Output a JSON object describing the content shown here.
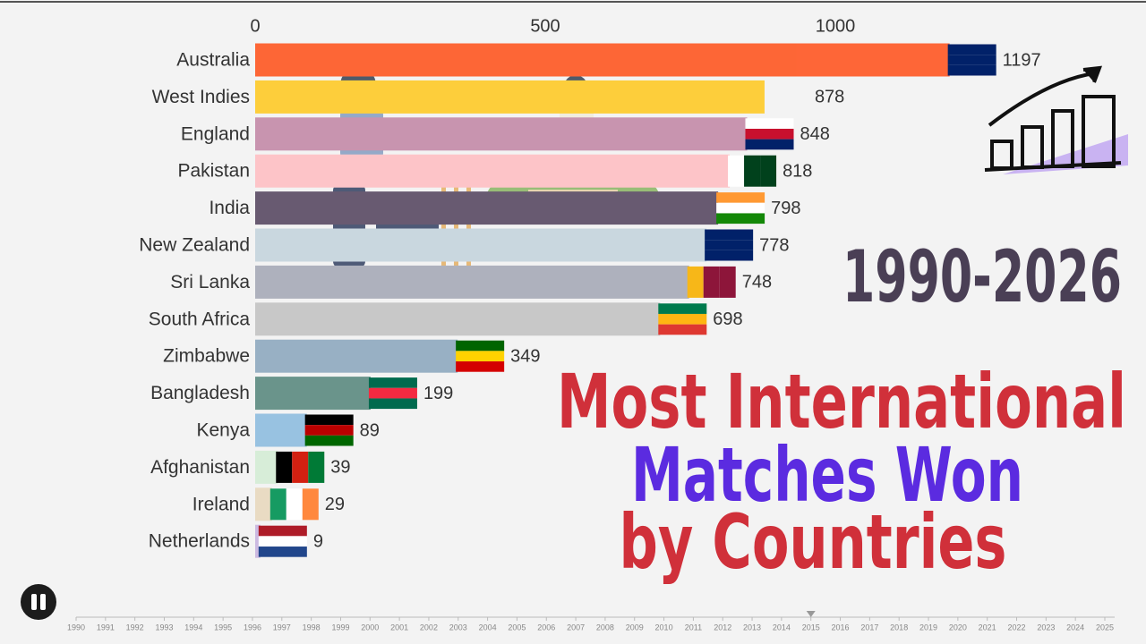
{
  "chart_data": {
    "type": "bar",
    "orientation": "horizontal",
    "period_label": "1990-2026",
    "title_lines": [
      "Most International",
      "Matches Won",
      "by Countries"
    ],
    "categories": [
      "Australia",
      "West Indies",
      "England",
      "Pakistan",
      "India",
      "New Zealand",
      "Sri Lanka",
      "South Africa",
      "Zimbabwe",
      "Bangladesh",
      "Kenya",
      "Afghanistan",
      "Ireland",
      "Netherlands"
    ],
    "values": [
      1197,
      878,
      848,
      818,
      798,
      778,
      748,
      698,
      349,
      199,
      89,
      39,
      29,
      9
    ],
    "colors": [
      "#ff5722",
      "#ffca28",
      "#c48aa8",
      "#ffc0c4",
      "#5a4a63",
      "#c5d5dd",
      "#a7aab8",
      "#c4c4c4",
      "#8fa9c0",
      "#5c8a80",
      "#8fbde0",
      "#d4edd6",
      "#e8d9be",
      "#c8b4e0"
    ],
    "xlim": [
      0,
      1500
    ],
    "xticks": [
      0,
      500,
      1000
    ],
    "grid": false,
    "timeline": {
      "years": [
        1990,
        1991,
        1992,
        1993,
        1994,
        1995,
        1996,
        1997,
        1998,
        1999,
        2000,
        2001,
        2002,
        2003,
        2004,
        2005,
        2006,
        2007,
        2008,
        2009,
        2010,
        2011,
        2012,
        2013,
        2014,
        2015,
        2016,
        2017,
        2018,
        2019,
        2020,
        2021,
        2022,
        2023,
        2024,
        2025
      ],
      "current": 2015
    }
  }
}
